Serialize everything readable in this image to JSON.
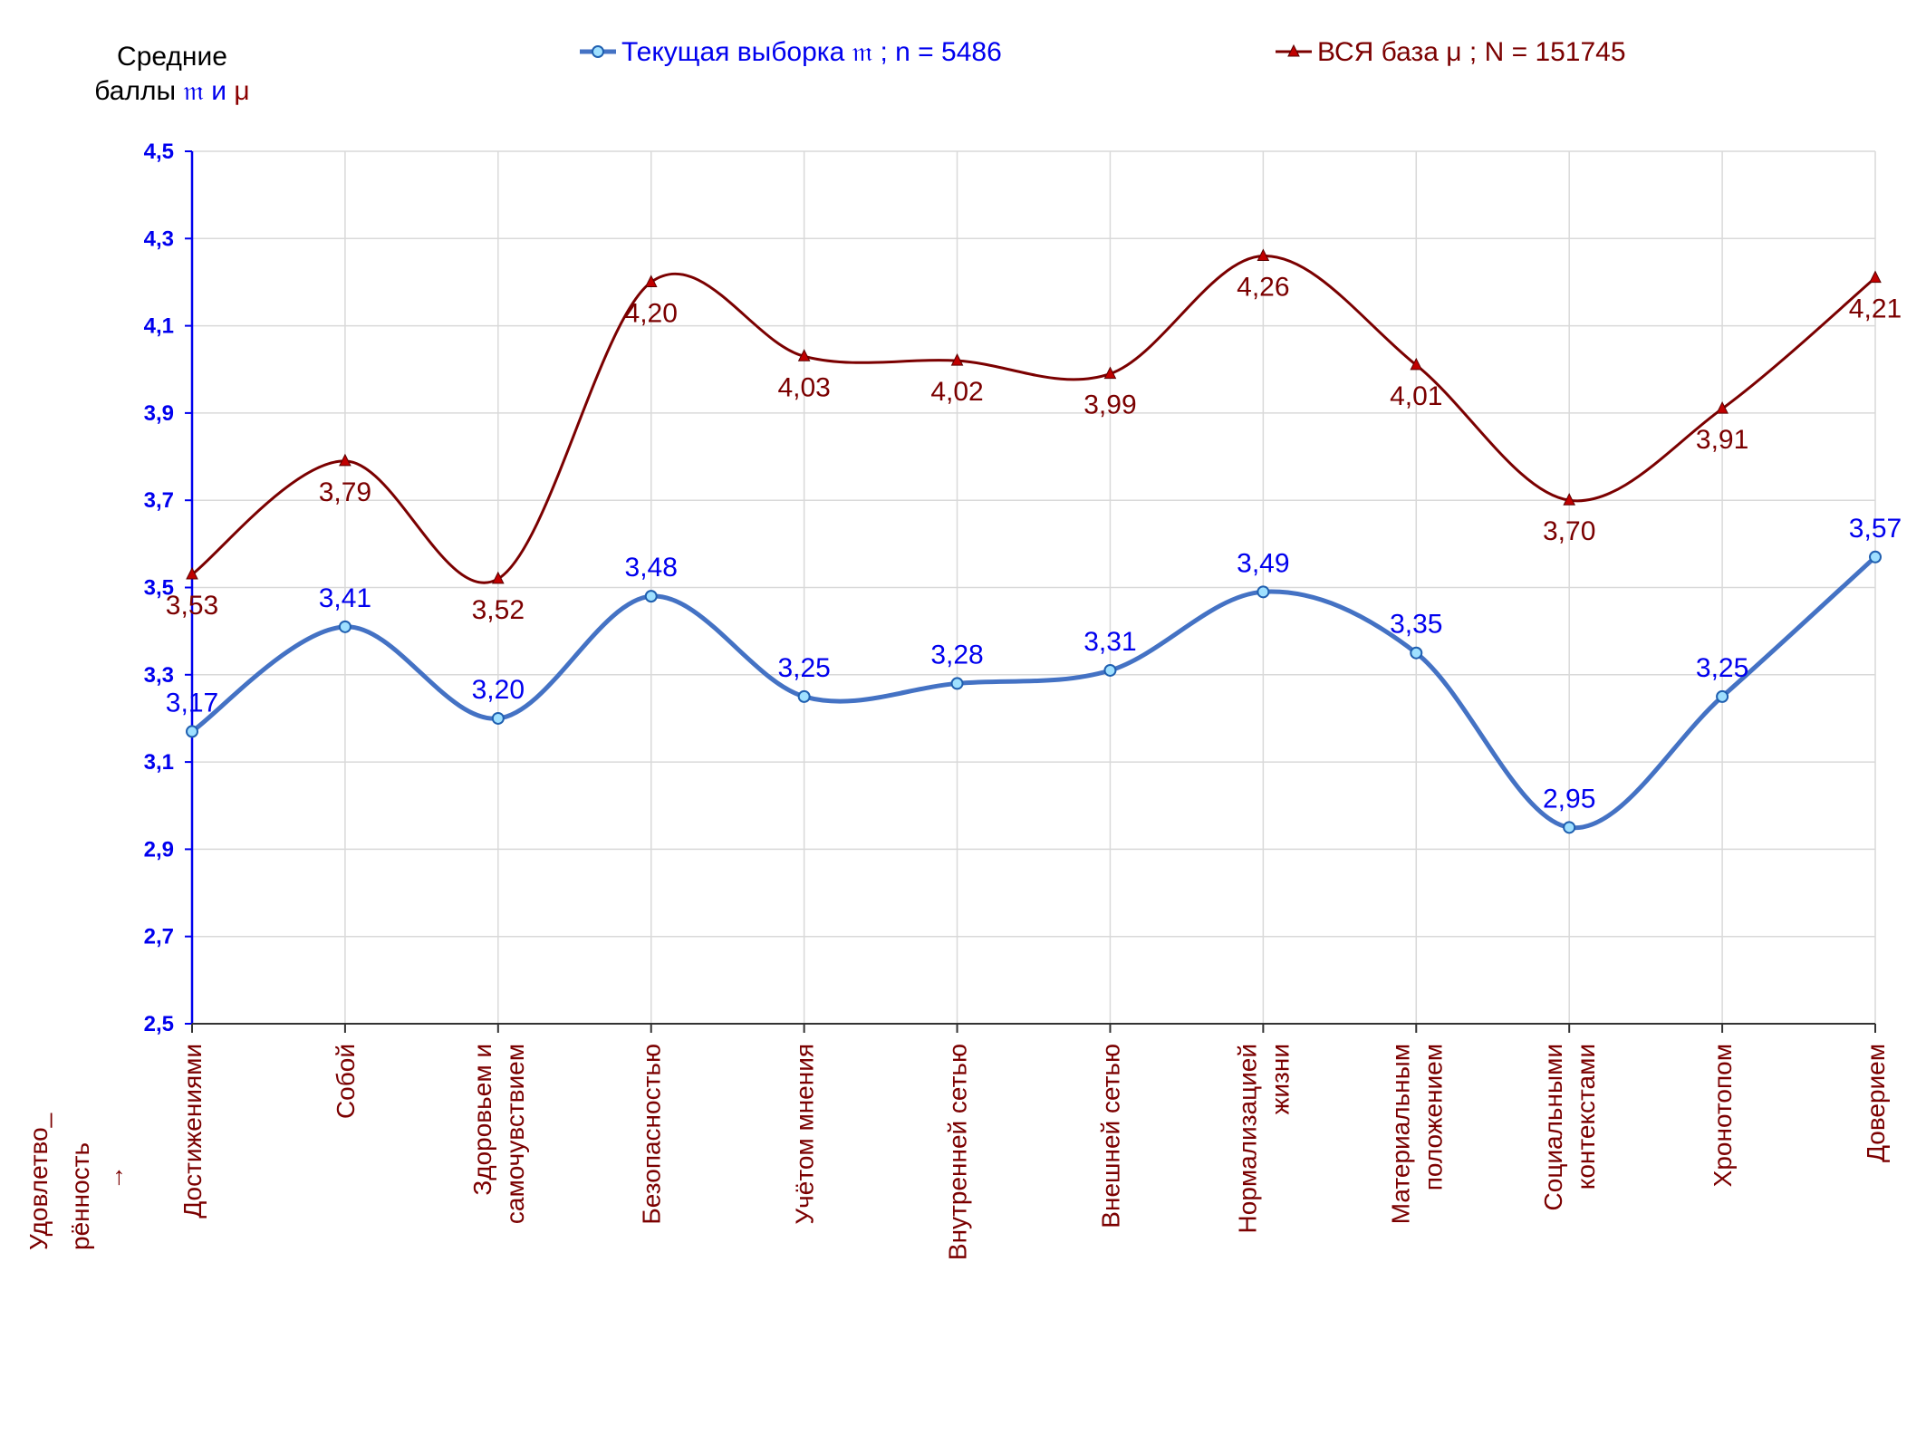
{
  "y_title": {
    "line1": "Средние",
    "line2_prefix": "баллы",
    "sym_sample": "𝔪",
    "conj": "и",
    "sym_base": "μ"
  },
  "x_title": {
    "line1": "Удовлетво_",
    "line2": "рённость",
    "arrow": "→"
  },
  "legend": [
    {
      "label": "Текущая выборка 𝔪 ; n = 5486",
      "color": "#4472c4",
      "marker": "circle"
    },
    {
      "label": "ВСЯ база μ ; N = 151745",
      "color": "#7b0000",
      "marker": "triangle"
    }
  ],
  "chart_data": {
    "type": "line",
    "categories": [
      [
        "Достижениями"
      ],
      [
        "Собой"
      ],
      [
        "Здоровьем и",
        "самочувствием"
      ],
      [
        "Безопасностью"
      ],
      [
        "Учётом мнения"
      ],
      [
        "Внутренней сетью"
      ],
      [
        "Внешней сетью"
      ],
      [
        "Нормализацией",
        "жизни"
      ],
      [
        "Материальным",
        "положением"
      ],
      [
        "Социальными",
        "контекстами"
      ],
      [
        "Хронотопом"
      ],
      [
        "Доверием"
      ]
    ],
    "series": [
      {
        "name": "Текущая выборка 𝔪 ; n = 5486",
        "values": [
          3.17,
          3.41,
          3.2,
          3.48,
          3.25,
          3.28,
          3.31,
          3.49,
          3.35,
          2.95,
          3.25,
          3.57
        ],
        "labels": [
          "3,17",
          "3,41",
          "3,20",
          "3,48",
          "3,25",
          "3,28",
          "3,31",
          "3,49",
          "3,35",
          "2,95",
          "3,25",
          "3,57"
        ],
        "color": "#4472c4"
      },
      {
        "name": "ВСЯ база μ ; N = 151745",
        "values": [
          3.53,
          3.79,
          3.52,
          4.2,
          4.03,
          4.02,
          3.99,
          4.26,
          4.01,
          3.7,
          3.91,
          4.21
        ],
        "labels": [
          "3,53",
          "3,79",
          "3,52",
          "4,20",
          "4,03",
          "4,02",
          "3,99",
          "4,26",
          "4,01",
          "3,70",
          "3,91",
          "4,21"
        ],
        "color": "#7b0000"
      }
    ],
    "ylim": [
      2.5,
      4.5
    ],
    "yticks": [
      "2,5",
      "2,7",
      "2,9",
      "3,1",
      "3,3",
      "3,5",
      "3,7",
      "3,9",
      "4,1",
      "4,3",
      "4,5"
    ],
    "grid": true,
    "legend_position": "top"
  }
}
